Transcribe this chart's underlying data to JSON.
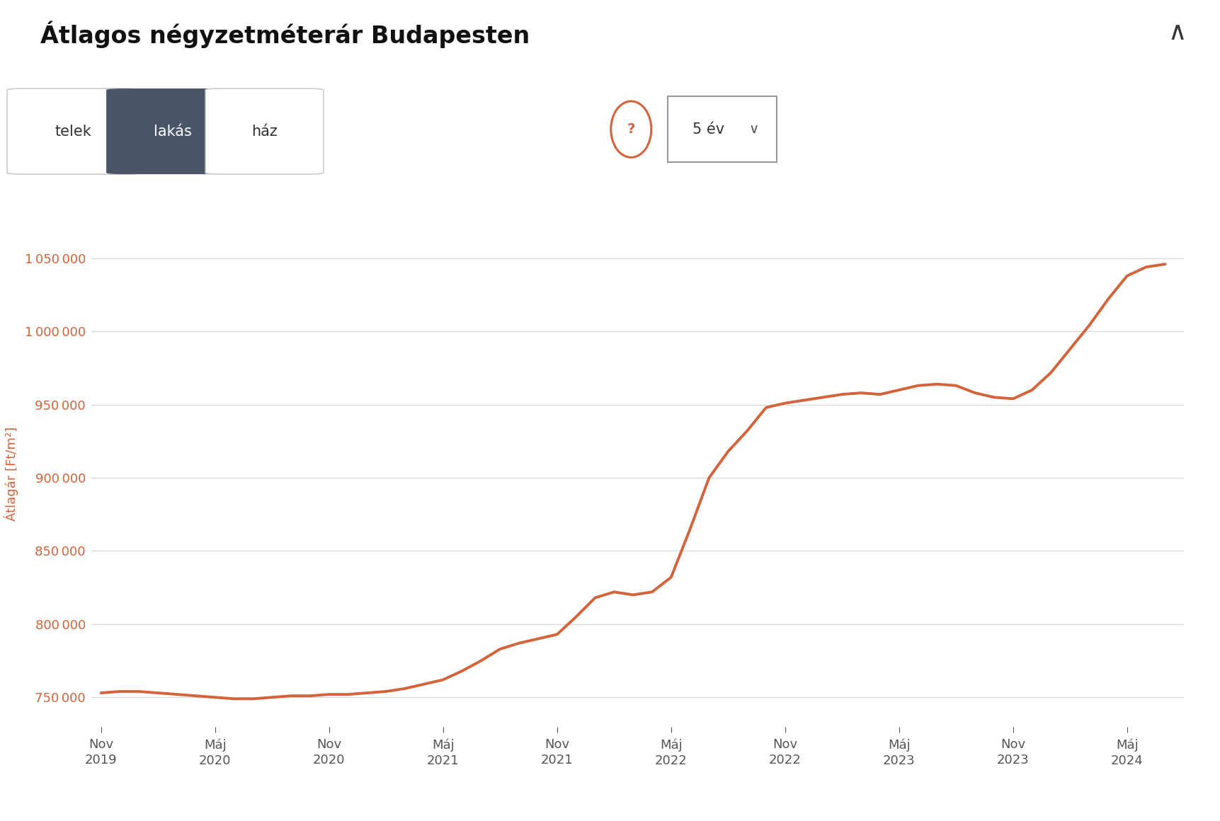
{
  "title": "Átlagos négyzetméterár Budapesten",
  "ylabel": "Átlagár [Ft/m²]",
  "line_color": "#d4623a",
  "background_color": "#ffffff",
  "grid_color": "#d8d8d8",
  "ytick_color": "#d4623a",
  "xtick_color": "#555555",
  "ylim": [
    730000,
    1075000
  ],
  "yticks": [
    750000,
    800000,
    850000,
    900000,
    950000,
    1000000,
    1050000
  ],
  "x_labels": [
    [
      "Nov\n2019",
      0
    ],
    [
      "Máj\n2020",
      6
    ],
    [
      "Nov\n2020",
      12
    ],
    [
      "Máj\n2021",
      18
    ],
    [
      "Nov\n2021",
      24
    ],
    [
      "Máj\n2022",
      30
    ],
    [
      "Nov\n2022",
      36
    ],
    [
      "Máj\n2023",
      42
    ],
    [
      "Nov\n2023",
      48
    ],
    [
      "Máj\n2024",
      54
    ]
  ],
  "data_x": [
    0,
    1,
    2,
    3,
    4,
    5,
    6,
    7,
    8,
    9,
    10,
    11,
    12,
    13,
    14,
    15,
    16,
    17,
    18,
    19,
    20,
    21,
    22,
    23,
    24,
    25,
    26,
    27,
    28,
    29,
    30,
    31,
    32,
    33,
    34,
    35,
    36,
    37,
    38,
    39,
    40,
    41,
    42,
    43,
    44,
    45,
    46,
    47,
    48,
    49,
    50,
    51,
    52,
    53,
    54,
    55,
    56
  ],
  "data_y": [
    753000,
    754000,
    754000,
    753000,
    752000,
    751000,
    750000,
    749000,
    749000,
    750000,
    751000,
    751000,
    752000,
    752000,
    753000,
    754000,
    756000,
    759000,
    762000,
    768000,
    775000,
    783000,
    787000,
    790000,
    793000,
    805000,
    818000,
    822000,
    820000,
    822000,
    832000,
    865000,
    900000,
    918000,
    932000,
    948000,
    951000,
    953000,
    955000,
    957000,
    958000,
    957000,
    960000,
    963000,
    964000,
    963000,
    958000,
    955000,
    954000,
    960000,
    972000,
    988000,
    1004000,
    1022000,
    1038000,
    1044000,
    1046000
  ],
  "tabs": [
    "telek",
    "lakás",
    "ház"
  ],
  "active_tab": 1,
  "tab_bg_active": "#4a5568",
  "tab_text_active": "#ffffff",
  "tab_bg_inactive": "#ffffff",
  "tab_text_inactive": "#333333",
  "tab_border_color": "#cccccc",
  "period_label": "5 év",
  "question_mark_color": "#d4623a",
  "title_fontsize": 24,
  "ylabel_fontsize": 13,
  "ytick_fontsize": 13,
  "xtick_fontsize": 13,
  "tab_fontsize": 15,
  "line_width": 2.8
}
